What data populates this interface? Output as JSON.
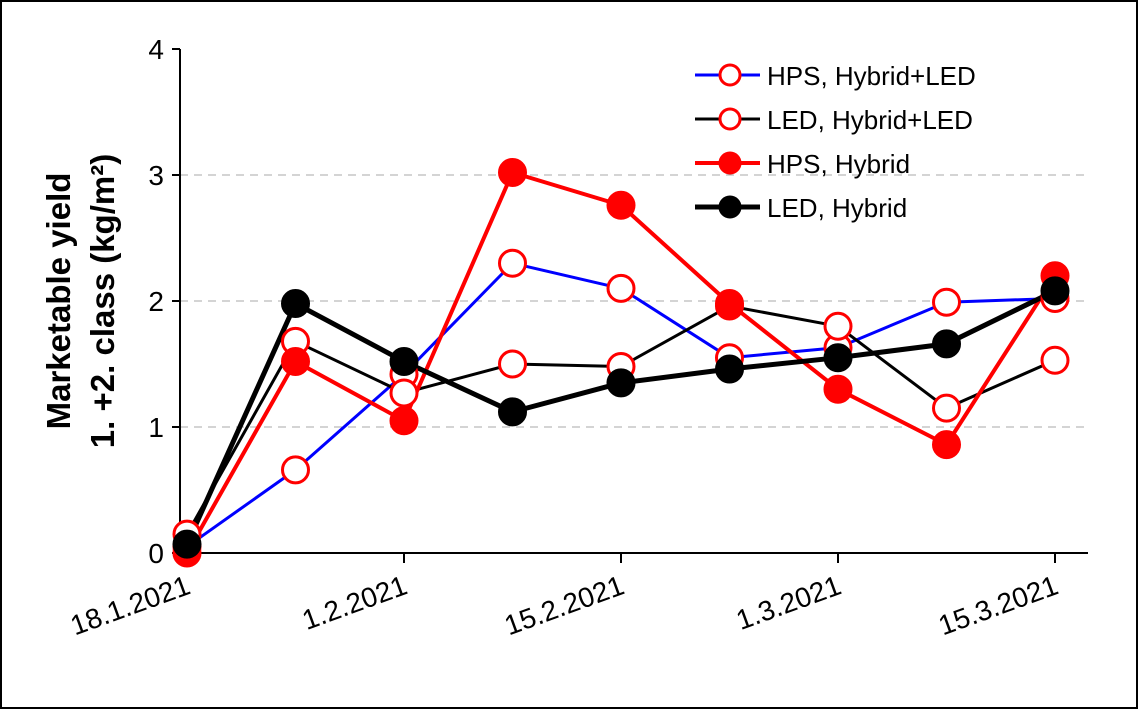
{
  "chart_data": {
    "type": "line",
    "y_label": [
      "Marketable yield",
      "1. +2. class (kg/m²)"
    ],
    "categories": [
      "18.1.2021",
      null,
      "1.2.2021",
      null,
      "15.2.2021",
      null,
      "1.3.2021",
      null,
      "15.3.2021"
    ],
    "ylim": [
      0,
      4
    ],
    "yticks": [
      0,
      1,
      2,
      3,
      4
    ],
    "grid": true,
    "legend": "top-right",
    "series": [
      {
        "name": "HPS, Hybrid+LED",
        "color": "#0000ff",
        "marker_color": "#ff0000",
        "marker_fill": "#ffffff",
        "line_width": 3,
        "values": [
          0.05,
          0.66,
          1.42,
          2.3,
          2.1,
          1.55,
          1.63,
          1.99,
          2.02
        ]
      },
      {
        "name": "LED, Hybrid+LED",
        "color": "#000000",
        "marker_color": "#ff0000",
        "marker_fill": "#ffffff",
        "line_width": 3,
        "values": [
          0.15,
          1.68,
          1.27,
          1.5,
          1.48,
          1.96,
          1.8,
          1.15,
          1.53
        ]
      },
      {
        "name": "HPS, Hybrid",
        "color": "#ff0000",
        "marker_color": "#ff0000",
        "marker_fill": "#ff0000",
        "line_width": 4,
        "values": [
          0.0,
          1.52,
          1.05,
          3.02,
          2.76,
          1.98,
          1.3,
          0.86,
          2.2
        ]
      },
      {
        "name": "LED, Hybrid",
        "color": "#000000",
        "marker_color": "#000000",
        "marker_fill": "#000000",
        "line_width": 5,
        "values": [
          0.07,
          1.98,
          1.52,
          1.12,
          1.35,
          1.46,
          1.55,
          1.66,
          2.08
        ]
      }
    ]
  }
}
